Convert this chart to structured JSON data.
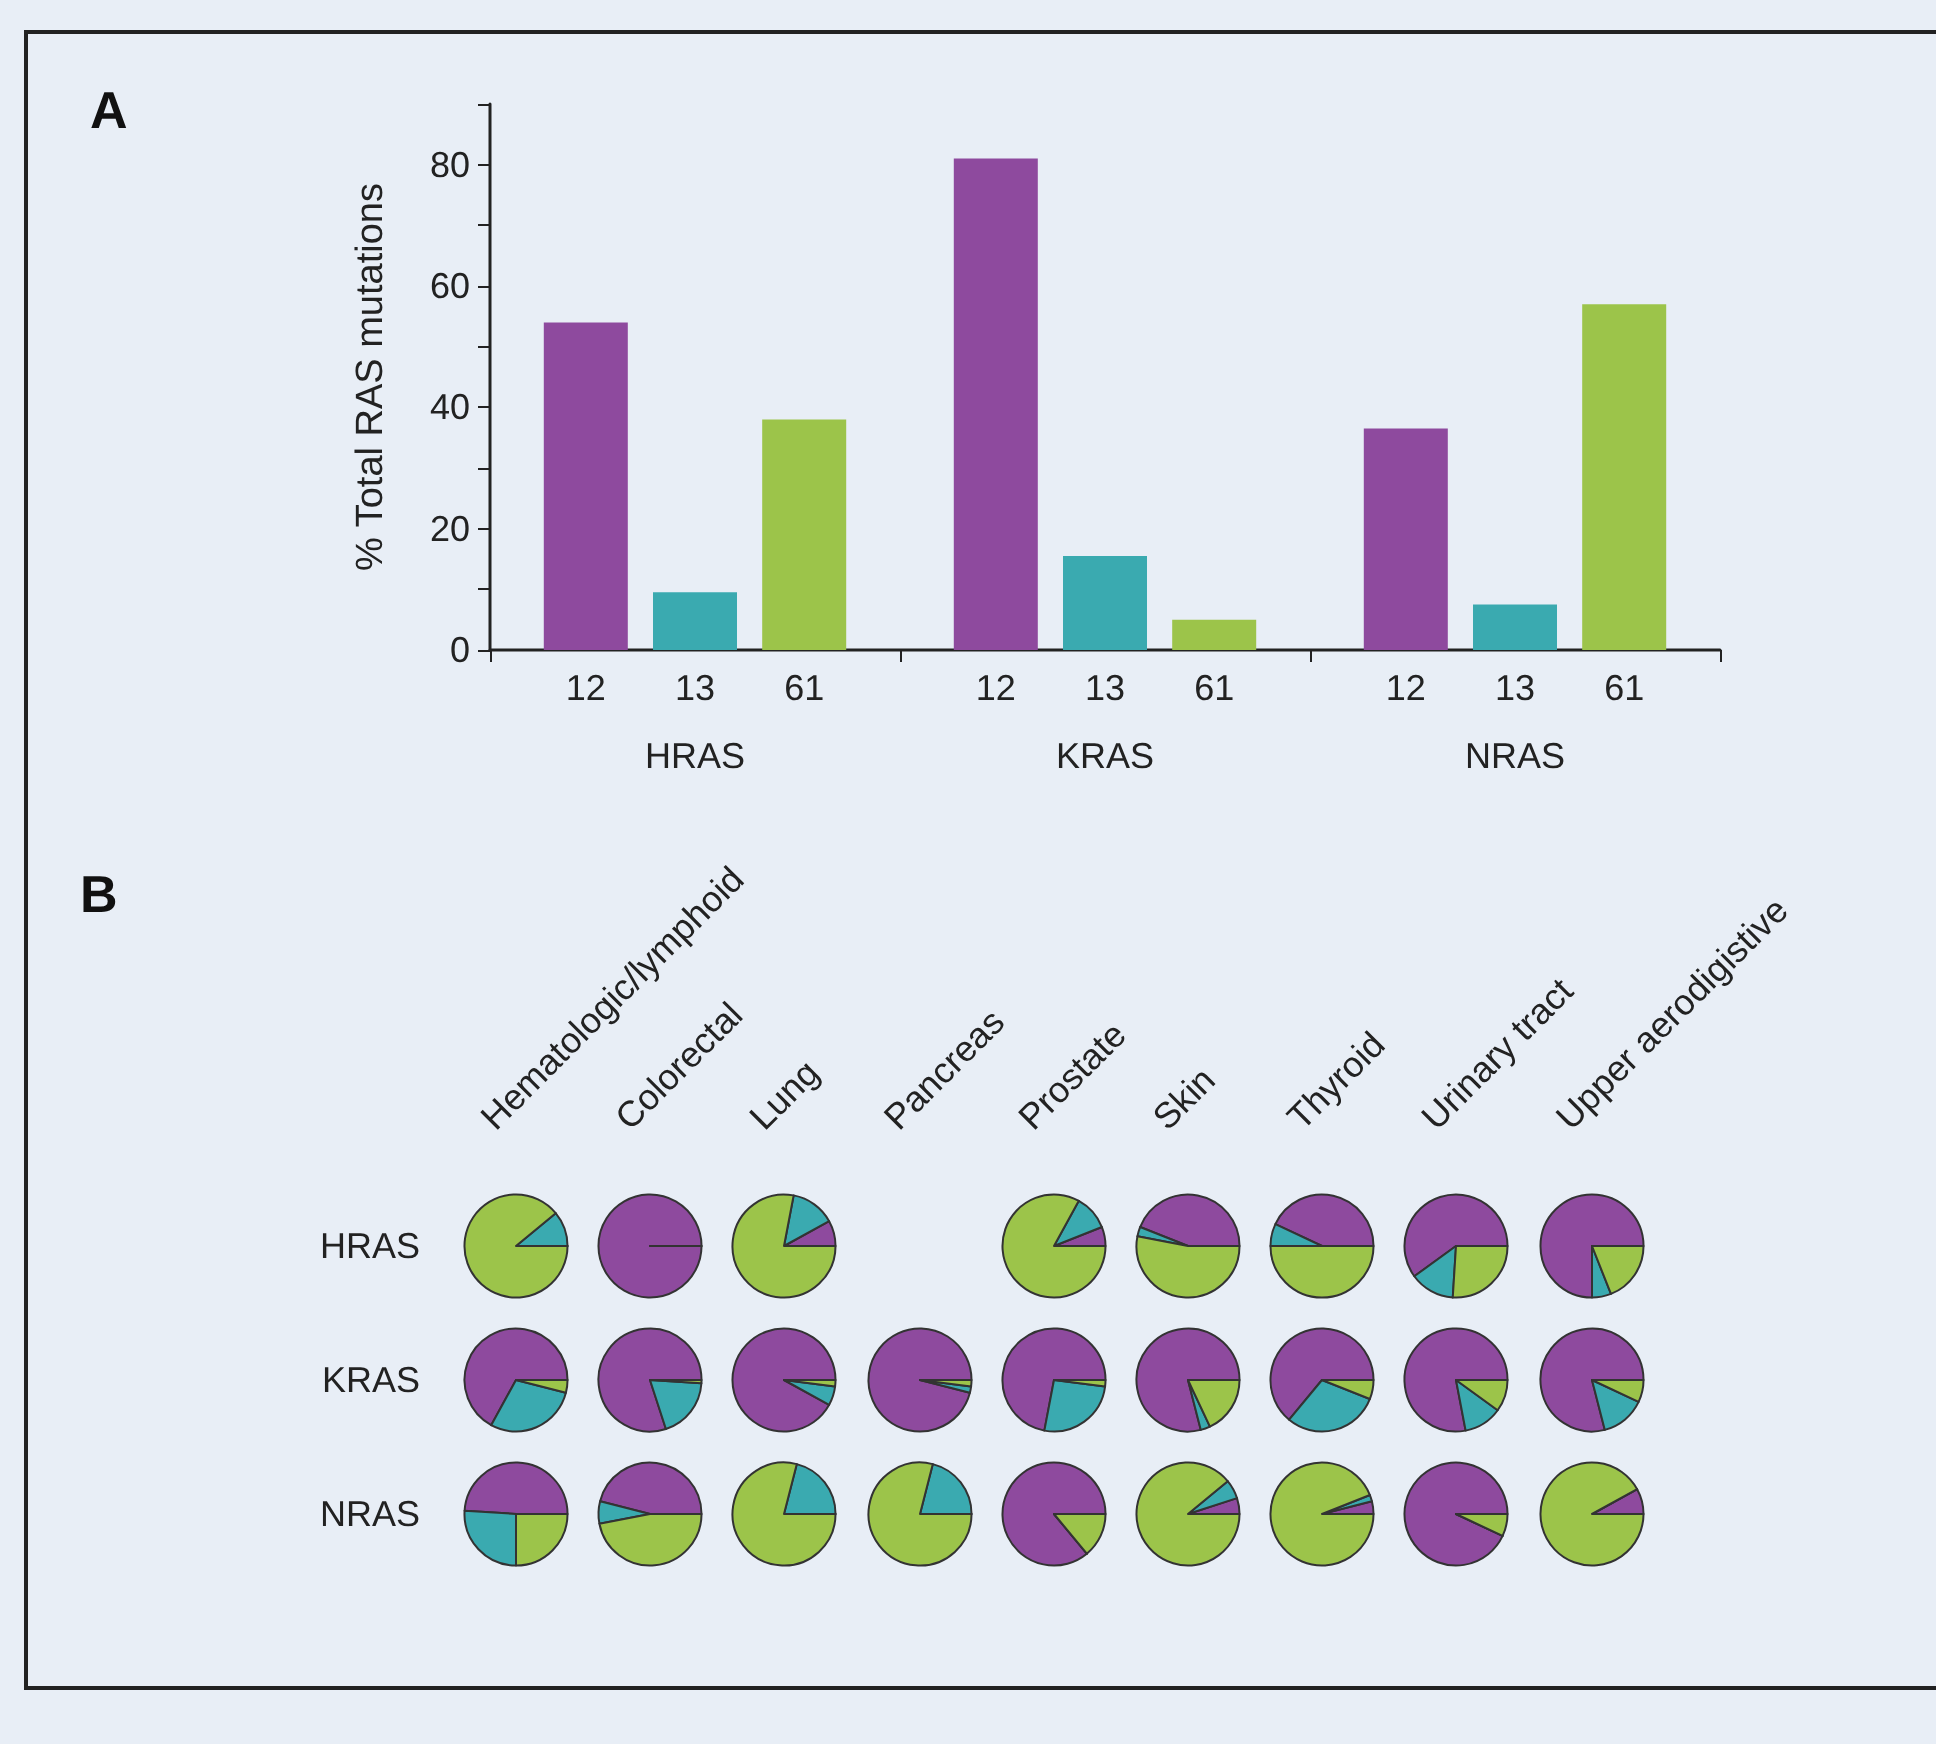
{
  "chart_data": [
    {
      "type": "bar",
      "title": "A",
      "ylabel": "% Total RAS mutations",
      "categories": [
        "HRAS",
        "KRAS",
        "NRAS"
      ],
      "series": [
        {
          "name": "12",
          "color": "#8e4a9e",
          "values": [
            54,
            81,
            36.5
          ]
        },
        {
          "name": "13",
          "color": "#3aaab0",
          "values": [
            9.5,
            15.5,
            7.5
          ]
        },
        {
          "name": "61",
          "color": "#9cc44a",
          "values": [
            38,
            5,
            57
          ]
        }
      ],
      "ylim": [
        0,
        90
      ],
      "yticks": [
        0,
        {
          "value": 10,
          "label": null
        },
        20,
        {
          "value": 30,
          "label": null
        },
        40,
        {
          "value": 50,
          "label": null
        },
        60,
        {
          "value": 70,
          "label": null
        },
        80,
        {
          "value": 90,
          "label": null
        }
      ],
      "grid": false,
      "legend": false
    },
    {
      "type": "other",
      "title": "B",
      "categories": [
        "Hematologic/lymphoid",
        "Colorectal",
        "Lung",
        "Pancreas",
        "Prostate",
        "Skin",
        "Thyroid",
        "Urinary tract",
        "Upper aerodigistive"
      ],
      "y_categories": [
        "HRAS",
        "KRAS",
        "NRAS"
      ]
    },
    {
      "type": "pie",
      "categories": [
        null,
        null,
        null
      ],
      "values": [
        0,
        11,
        89
      ],
      "colors": [
        "#8e4a9e",
        "#3aaab0",
        "#9cc44a"
      ]
    },
    {
      "type": "pie",
      "categories": [
        null,
        null,
        null
      ],
      "values": [
        100,
        0,
        0
      ],
      "colors": [
        "#8e4a9e",
        "#3aaab0",
        "#9cc44a"
      ]
    },
    {
      "type": "pie",
      "categories": [
        null,
        null,
        null
      ],
      "values": [
        8,
        14,
        78
      ],
      "colors": [
        "#8e4a9e",
        "#3aaab0",
        "#9cc44a"
      ]
    },
    {
      "type": "pie",
      "categories": [
        null,
        null,
        null
      ],
      "values": [
        6,
        11,
        83
      ],
      "colors": [
        "#8e4a9e",
        "#3aaab0",
        "#9cc44a"
      ]
    },
    {
      "type": "pie",
      "categories": [
        null,
        null,
        null
      ],
      "values": [
        44,
        3,
        53
      ],
      "colors": [
        "#8e4a9e",
        "#3aaab0",
        "#9cc44a"
      ]
    },
    {
      "type": "pie",
      "categories": [
        null,
        null,
        null
      ],
      "values": [
        43,
        7,
        50
      ],
      "colors": [
        "#8e4a9e",
        "#3aaab0",
        "#9cc44a"
      ]
    },
    {
      "type": "pie",
      "categories": [
        null,
        null,
        null
      ],
      "values": [
        60,
        14,
        26
      ],
      "colors": [
        "#8e4a9e",
        "#3aaab0",
        "#9cc44a"
      ]
    },
    {
      "type": "pie",
      "categories": [
        null,
        null,
        null
      ],
      "values": [
        75,
        6,
        19
      ],
      "colors": [
        "#8e4a9e",
        "#3aaab0",
        "#9cc44a"
      ]
    },
    {
      "type": "pie",
      "categories": [
        null,
        null,
        null
      ],
      "values": [
        67,
        29,
        4
      ],
      "colors": [
        "#8e4a9e",
        "#3aaab0",
        "#9cc44a"
      ]
    },
    {
      "type": "pie",
      "categories": [
        null,
        null,
        null
      ],
      "values": [
        80,
        19,
        1
      ],
      "colors": [
        "#8e4a9e",
        "#3aaab0",
        "#9cc44a"
      ]
    },
    {
      "type": "pie",
      "categories": [
        null,
        null,
        null
      ],
      "values": [
        92,
        6,
        2
      ],
      "colors": [
        "#8e4a9e",
        "#3aaab0",
        "#9cc44a"
      ]
    },
    {
      "type": "pie",
      "categories": [
        null,
        null,
        null
      ],
      "values": [
        96,
        2,
        2
      ],
      "colors": [
        "#8e4a9e",
        "#3aaab0",
        "#9cc44a"
      ]
    },
    {
      "type": "pie",
      "categories": [
        null,
        null,
        null
      ],
      "values": [
        72,
        26,
        2
      ],
      "colors": [
        "#8e4a9e",
        "#3aaab0",
        "#9cc44a"
      ]
    },
    {
      "type": "pie",
      "categories": [
        null,
        null,
        null
      ],
      "values": [
        79,
        3,
        18
      ],
      "colors": [
        "#8e4a9e",
        "#3aaab0",
        "#9cc44a"
      ]
    },
    {
      "type": "pie",
      "categories": [
        null,
        null,
        null
      ],
      "values": [
        64,
        30,
        6
      ],
      "colors": [
        "#8e4a9e",
        "#3aaab0",
        "#9cc44a"
      ]
    },
    {
      "type": "pie",
      "categories": [
        null,
        null,
        null
      ],
      "values": [
        78,
        12,
        10
      ],
      "colors": [
        "#8e4a9e",
        "#3aaab0",
        "#9cc44a"
      ]
    },
    {
      "type": "pie",
      "categories": [
        null,
        null,
        null
      ],
      "values": [
        79,
        14,
        7
      ],
      "colors": [
        "#8e4a9e",
        "#3aaab0",
        "#9cc44a"
      ]
    },
    {
      "type": "pie",
      "categories": [
        null,
        null,
        null
      ],
      "values": [
        49,
        26,
        25
      ],
      "colors": [
        "#8e4a9e",
        "#3aaab0",
        "#9cc44a"
      ]
    },
    {
      "type": "pie",
      "categories": [
        null,
        null,
        null
      ],
      "values": [
        46,
        7,
        47
      ],
      "colors": [
        "#8e4a9e",
        "#3aaab0",
        "#9cc44a"
      ]
    },
    {
      "type": "pie",
      "categories": [
        null,
        null,
        null
      ],
      "values": [
        0,
        21,
        79
      ],
      "colors": [
        "#8e4a9e",
        "#3aaab0",
        "#9cc44a"
      ]
    },
    {
      "type": "pie",
      "categories": [
        null,
        null,
        null
      ],
      "values": [
        0,
        21,
        79
      ],
      "colors": [
        "#8e4a9e",
        "#3aaab0",
        "#9cc44a"
      ]
    },
    {
      "type": "pie",
      "categories": [
        null,
        null,
        null
      ],
      "values": [
        86,
        0,
        14
      ],
      "colors": [
        "#8e4a9e",
        "#3aaab0",
        "#9cc44a"
      ]
    },
    {
      "type": "pie",
      "categories": [
        null,
        null,
        null
      ],
      "values": [
        5,
        6,
        89
      ],
      "colors": [
        "#8e4a9e",
        "#3aaab0",
        "#9cc44a"
      ]
    },
    {
      "type": "pie",
      "categories": [
        null,
        null,
        null
      ],
      "values": [
        4,
        2,
        94
      ],
      "colors": [
        "#8e4a9e",
        "#3aaab0",
        "#9cc44a"
      ]
    },
    {
      "type": "pie",
      "categories": [
        null,
        null,
        null
      ],
      "values": [
        93,
        0,
        7
      ],
      "colors": [
        "#8e4a9e",
        "#3aaab0",
        "#9cc44a"
      ]
    },
    {
      "type": "pie",
      "categories": [
        null,
        null,
        null
      ],
      "values": [
        8,
        0,
        92
      ],
      "colors": [
        "#8e4a9e",
        "#3aaab0",
        "#9cc44a"
      ]
    }
  ]
}
